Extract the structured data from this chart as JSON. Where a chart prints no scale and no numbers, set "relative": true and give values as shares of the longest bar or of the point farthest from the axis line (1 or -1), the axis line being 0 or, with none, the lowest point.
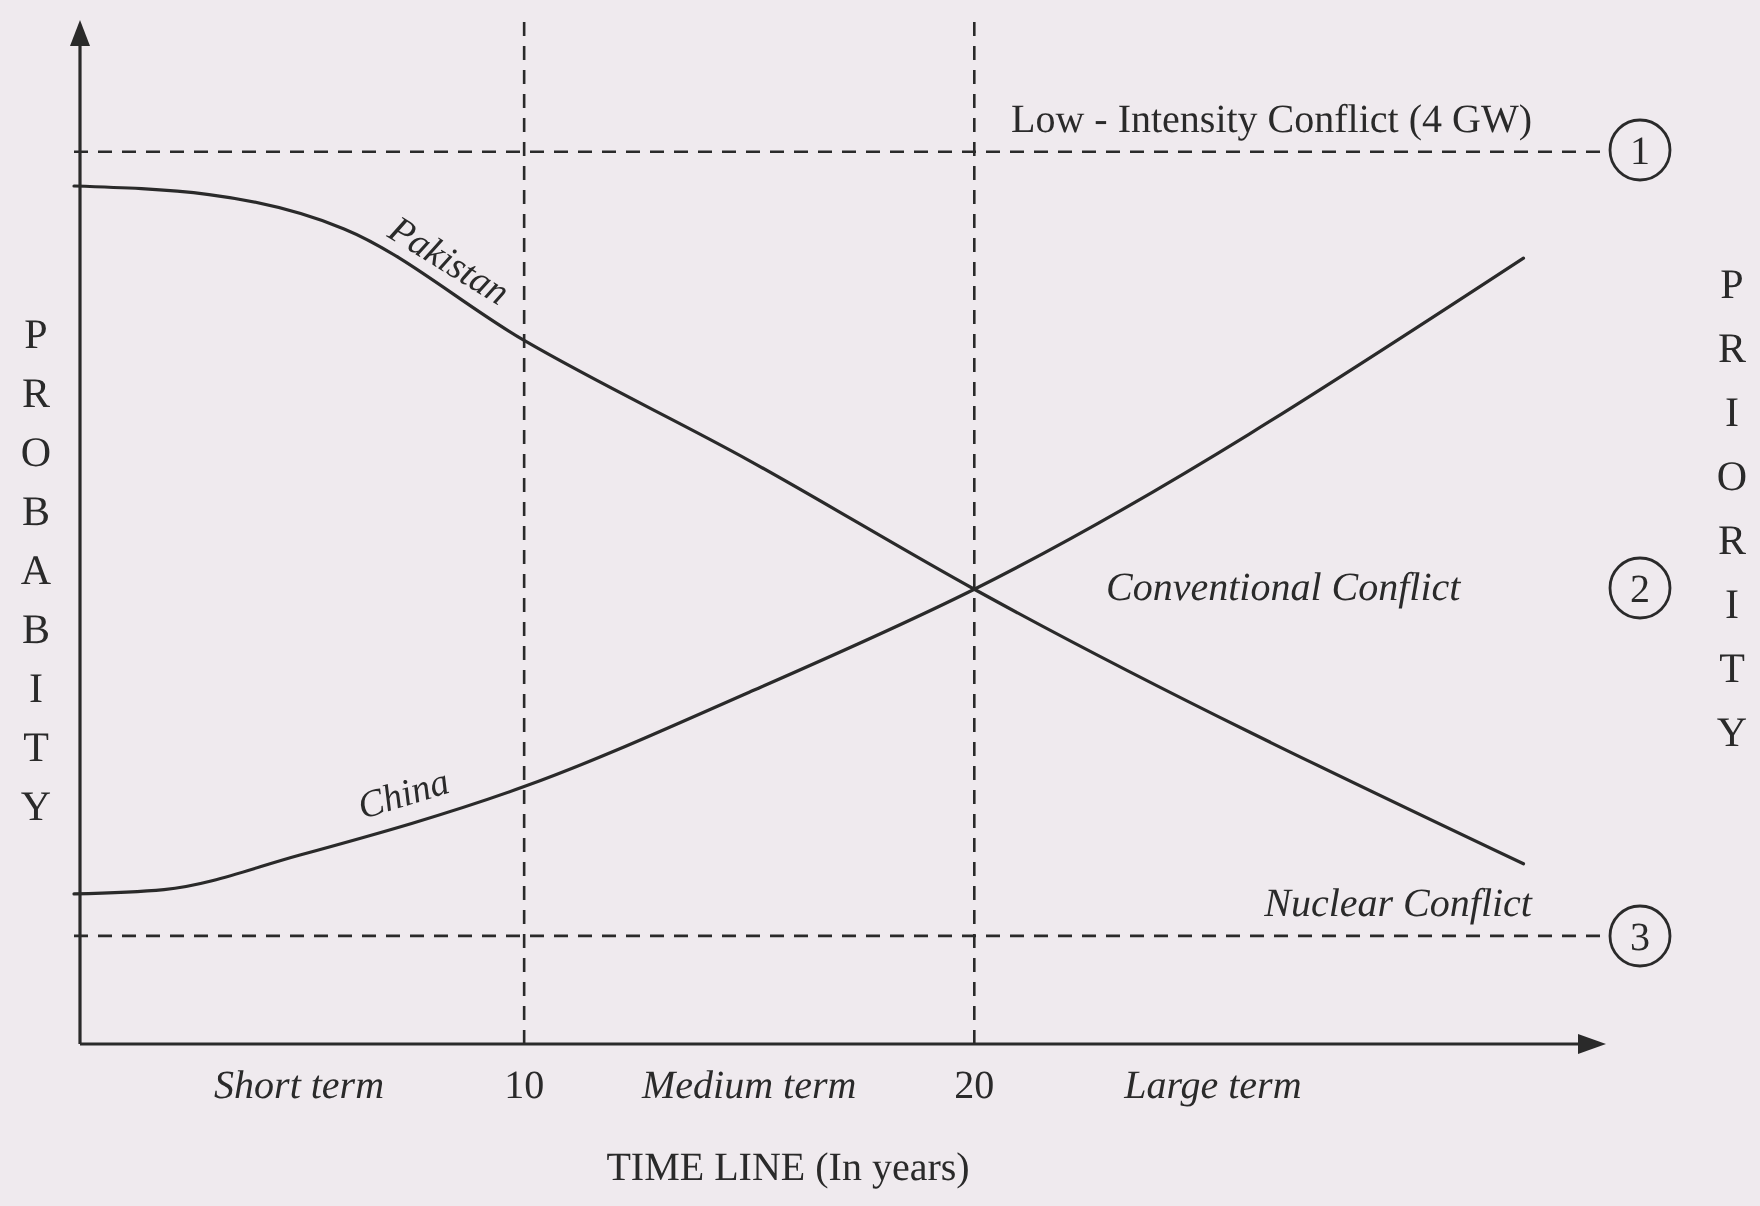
{
  "chart_data": {
    "type": "line",
    "relative": true,
    "xlabel": "TIME LINE (In years)",
    "ylabel": "PROBABITY",
    "y2label": "PRIORITY",
    "xlim": [
      0,
      33.5
    ],
    "xticks": [
      {
        "value": 5,
        "label": "Short term"
      },
      10,
      {
        "value": 15,
        "label": "Medium term"
      },
      20,
      {
        "value": 25.3,
        "label": "Large term"
      }
    ],
    "series": [
      {
        "name": "Pakistan",
        "color": "#2a2a2a",
        "x": [
          0,
          3,
          6,
          10,
          15,
          20,
          32.2
        ],
        "values": [
          1,
          0.99,
          0.95,
          0.82,
          0.68,
          0.53,
          0.21
        ]
      },
      {
        "name": "China",
        "color": "#2a2a2a",
        "x": [
          0,
          2,
          5,
          10,
          15,
          20,
          32.2
        ],
        "values": [
          0.175,
          0.18,
          0.22,
          0.3,
          0.41,
          0.53,
          0.916
        ]
      }
    ],
    "ref_lines": [
      {
        "axis": "y",
        "value": 1.04,
        "label": "Low - Intensity Conflict (4 GW)",
        "line_style": "dashed"
      },
      {
        "axis": "y",
        "value": 0.126,
        "label": "Nuclear Conflict",
        "line_style": "dashed"
      },
      {
        "axis": "x",
        "value": 10,
        "label": null,
        "line_style": "dashed"
      },
      {
        "axis": "x",
        "value": 20,
        "label": null,
        "line_style": "dashed"
      }
    ],
    "annotations": [
      "Conventional Conflict",
      "1",
      "2",
      "3"
    ],
    "line_style": "solid",
    "marker": "none"
  }
}
